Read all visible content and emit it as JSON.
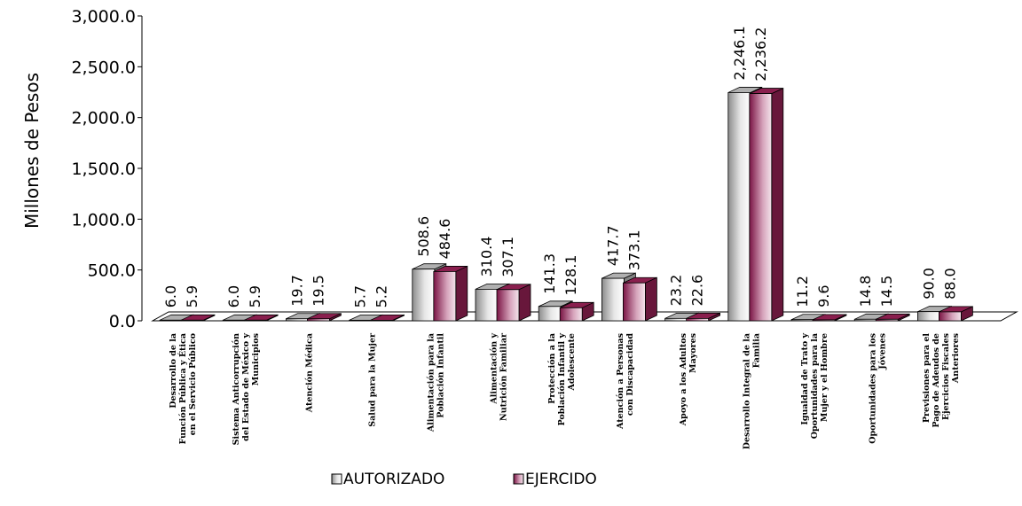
{
  "chart_data": {
    "type": "bar",
    "title": "",
    "ylabel": "Millones de Pesos",
    "xlabel": "",
    "ylim": [
      0,
      3000
    ],
    "yticks": [
      "0.0",
      "500.0",
      "1,000.0",
      "1,500.0",
      "2,000.0",
      "2,500.0",
      "3,000.0"
    ],
    "categories": [
      [
        "Desarrollo de la",
        "Función Pública y Ética",
        "en el Servicio Público"
      ],
      [
        "Sistema Anticorrupción",
        "del Estado de México y",
        "Municipios"
      ],
      [
        "Atención Médica"
      ],
      [
        "Salud para la Mujer"
      ],
      [
        "Alimentación para la",
        "Población Infantil"
      ],
      [
        "Alimentación y",
        "Nutrición Familiar"
      ],
      [
        "Protección a la",
        "Población Infantil y",
        "Adolescente"
      ],
      [
        "Atención a Personas",
        "con Discapacidad"
      ],
      [
        "Apoyo a los Adultos",
        "Mayores"
      ],
      [
        "Desarrollo Integral de la",
        "Familia"
      ],
      [
        "Igualdad de Trato y",
        "Oportunidades para la",
        "Mujer y el Hombre"
      ],
      [
        "Oportunidades para los",
        "Jóvenes"
      ],
      [
        "Previsiones para el",
        "Pago de Adeudos de",
        "Ejercicios Fiscales",
        "Anteriores"
      ]
    ],
    "series": [
      {
        "name": "AUTORIZADO",
        "color": "#b0b0b0",
        "values": [
          6.0,
          6.0,
          19.7,
          5.7,
          508.6,
          310.4,
          141.3,
          417.7,
          23.2,
          2246.1,
          11.2,
          14.8,
          90.0
        ],
        "labels": [
          "6.0",
          "6.0",
          "19.7",
          "5.7",
          "508.6",
          "310.4",
          "141.3",
          "417.7",
          "23.2",
          "2,246.1",
          "11.2",
          "14.8",
          "90.0"
        ]
      },
      {
        "name": "EJERCIDO",
        "color": "#8a1f4e",
        "values": [
          5.9,
          5.9,
          19.5,
          5.2,
          484.6,
          307.1,
          128.1,
          373.1,
          22.6,
          2236.2,
          9.6,
          14.5,
          88.0
        ],
        "labels": [
          "5.9",
          "5.9",
          "19.5",
          "5.2",
          "484.6",
          "307.1",
          "128.1",
          "373.1",
          "22.6",
          "2,236.2",
          "9.6",
          "14.5",
          "88.0"
        ]
      }
    ],
    "legend": "bottom",
    "grid": false
  }
}
